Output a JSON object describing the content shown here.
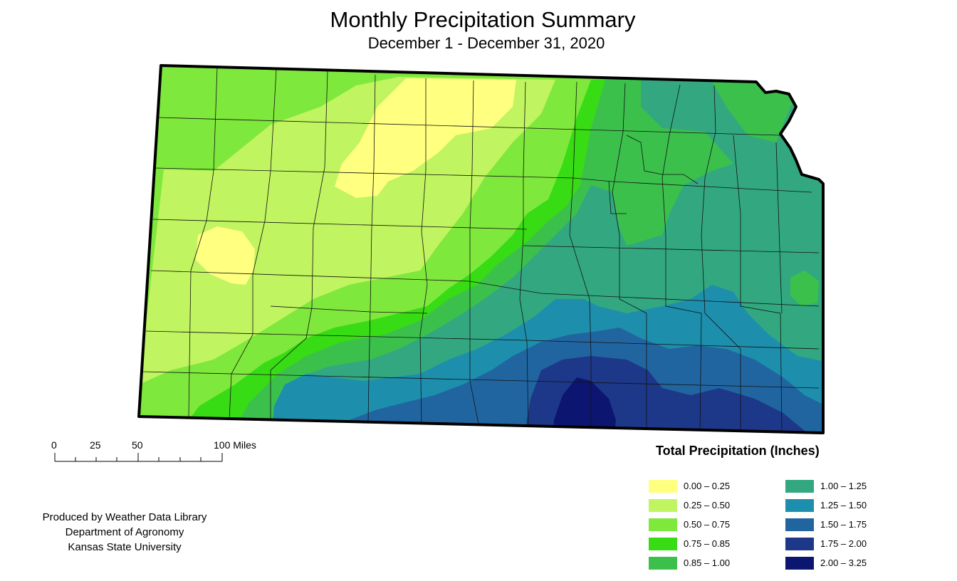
{
  "map": {
    "title": "Monthly Precipitation Summary",
    "subtitle": "December 1 - December 31, 2020"
  },
  "scale_bar": {
    "labels": [
      "0",
      "25",
      "50",
      "100 Miles"
    ]
  },
  "legend": {
    "title": "Total Precipitation (Inches)",
    "classes": [
      {
        "label": "0.00 – 0.25",
        "color": "#ffff80"
      },
      {
        "label": "0.25 – 0.50",
        "color": "#c0f460"
      },
      {
        "label": "0.50 – 0.75",
        "color": "#7fe83c"
      },
      {
        "label": "0.75 – 0.85",
        "color": "#38dc14"
      },
      {
        "label": "0.85 – 1.00",
        "color": "#3cc04c"
      },
      {
        "label": "1.00 – 1.25",
        "color": "#33a880"
      },
      {
        "label": "1.25 – 1.50",
        "color": "#1d8fac"
      },
      {
        "label": "1.50 – 1.75",
        "color": "#2165a0"
      },
      {
        "label": "1.75 – 2.00",
        "color": "#1d3888"
      },
      {
        "label": "2.00 – 3.25",
        "color": "#0c1670"
      }
    ]
  },
  "credits": {
    "line1": "Produced by Weather Data Library",
    "line2": "Department of Agronomy",
    "line3": "Kansas State University"
  }
}
